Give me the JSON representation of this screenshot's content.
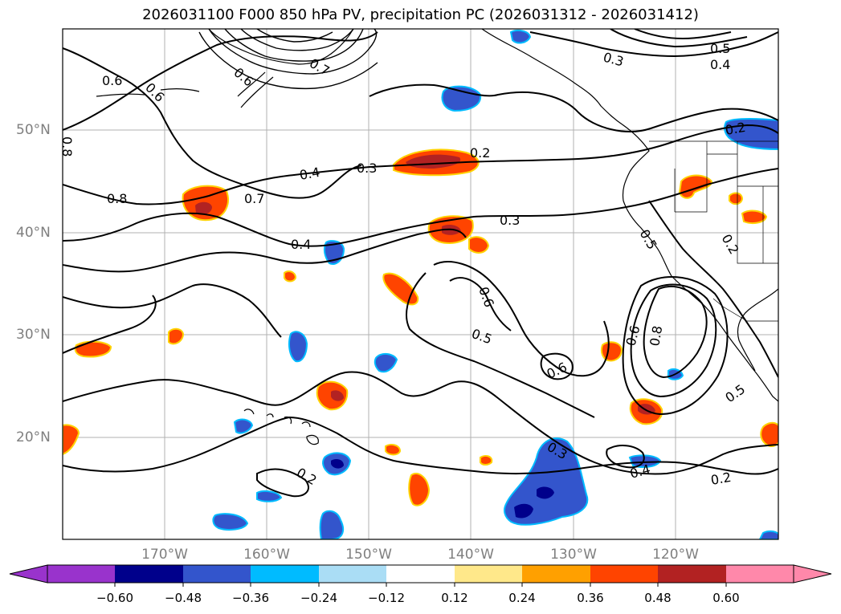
{
  "title": "2026031100 F000 850 hPa PV, precipitation PC (2026031312 - 2026031412)",
  "latitude_labels": [
    "50°N",
    "40°N",
    "30°N",
    "20°N"
  ],
  "longitude_labels": [
    "170°W",
    "160°W",
    "150°W",
    "140°W",
    "130°W",
    "120°W"
  ],
  "pv_contour_labels": [
    "0.6",
    "0.6",
    "0.7",
    "0.6",
    "0.5",
    "0.4",
    "0.3",
    "0.8",
    "0.8",
    "0.7",
    "0.4",
    "0.3",
    "0.2",
    "0.2",
    "0.3",
    "0.4",
    "0.6",
    "0.5",
    "0.6",
    "0.5",
    "0.6",
    "0.8",
    "0.2",
    "0.5",
    "0.2",
    "0.3",
    "0.4",
    "0.2"
  ],
  "colorbar": {
    "ticks": [
      "−0.60",
      "−0.48",
      "−0.36",
      "−0.24",
      "−0.12",
      "0.12",
      "0.24",
      "0.36",
      "0.48",
      "0.60"
    ],
    "colors": [
      "#9933cc",
      "#00008b",
      "#3355cc",
      "#00bbff",
      "#aaddf5",
      "#ffffff",
      "#ffe88a",
      "#ffa000",
      "#ff4400",
      "#b22222",
      "#ff88aa"
    ]
  },
  "colors": {
    "positive_fill": "#ff4400",
    "positive_core": "#b22222",
    "negative_fill": "#3355cc",
    "negative_core": "#00008b",
    "grid": "#b0b0b0"
  }
}
